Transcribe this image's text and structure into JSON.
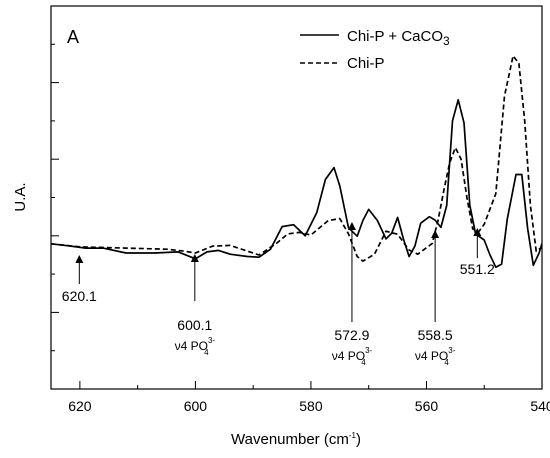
{
  "chart_data": {
    "type": "line",
    "panel_label": "A",
    "xlabel": "Wavenumber (cm",
    "xlabel_sup": "-1",
    "xlabel_end": ")",
    "ylabel": "U.A.",
    "xlim": [
      625,
      540
    ],
    "ylim": [
      0,
      1
    ],
    "x_reversed": true,
    "x_ticks": [
      620,
      600,
      580,
      560,
      540
    ],
    "x_tick_labels": [
      "620",
      "600",
      "580",
      "560",
      "540"
    ],
    "y_tick_labels_shown": false,
    "legend_position": "top-right",
    "series": [
      {
        "name": "Chi-P + CaCO",
        "name_sub": "3",
        "style": "solid",
        "color": "#000000",
        "points": [
          [
            625,
            0.379
          ],
          [
            622,
            0.374
          ],
          [
            619,
            0.368
          ],
          [
            616,
            0.368
          ],
          [
            612,
            0.355
          ],
          [
            607,
            0.355
          ],
          [
            603,
            0.358
          ],
          [
            600,
            0.34
          ],
          [
            598,
            0.358
          ],
          [
            596,
            0.362
          ],
          [
            594,
            0.352
          ],
          [
            591,
            0.346
          ],
          [
            589,
            0.344
          ],
          [
            587,
            0.365
          ],
          [
            585,
            0.424
          ],
          [
            583,
            0.429
          ],
          [
            581,
            0.4
          ],
          [
            579,
            0.46
          ],
          [
            577.5,
            0.547
          ],
          [
            576,
            0.578
          ],
          [
            575,
            0.53
          ],
          [
            573.5,
            0.421
          ],
          [
            572,
            0.399
          ],
          [
            571,
            0.44
          ],
          [
            570,
            0.469
          ],
          [
            568.5,
            0.44
          ],
          [
            567,
            0.392
          ],
          [
            566,
            0.407
          ],
          [
            565,
            0.448
          ],
          [
            564,
            0.392
          ],
          [
            563,
            0.346
          ],
          [
            562,
            0.373
          ],
          [
            561,
            0.433
          ],
          [
            559.5,
            0.45
          ],
          [
            558.5,
            0.441
          ],
          [
            557.5,
            0.422
          ],
          [
            556.5,
            0.479
          ],
          [
            555.5,
            0.7
          ],
          [
            554.5,
            0.755
          ],
          [
            553.5,
            0.695
          ],
          [
            552.5,
            0.48
          ],
          [
            551.5,
            0.405
          ],
          [
            550,
            0.389
          ],
          [
            549,
            0.35
          ],
          [
            548,
            0.318
          ],
          [
            547,
            0.326
          ],
          [
            546,
            0.444
          ],
          [
            544.5,
            0.56
          ],
          [
            543.5,
            0.56
          ],
          [
            542.5,
            0.42
          ],
          [
            541.5,
            0.323
          ],
          [
            540.5,
            0.355
          ],
          [
            540,
            0.38
          ]
        ]
      },
      {
        "name": "Chi-P",
        "style": "dashed",
        "color": "#000000",
        "points": [
          [
            625,
            0.379
          ],
          [
            620,
            0.371
          ],
          [
            612,
            0.368
          ],
          [
            605,
            0.365
          ],
          [
            602,
            0.36
          ],
          [
            600,
            0.355
          ],
          [
            597,
            0.373
          ],
          [
            594,
            0.375
          ],
          [
            591,
            0.36
          ],
          [
            589,
            0.35
          ],
          [
            586,
            0.38
          ],
          [
            584,
            0.405
          ],
          [
            582,
            0.409
          ],
          [
            580,
            0.402
          ],
          [
            577,
            0.44
          ],
          [
            575,
            0.445
          ],
          [
            573.5,
            0.405
          ],
          [
            572,
            0.346
          ],
          [
            571,
            0.334
          ],
          [
            569,
            0.352
          ],
          [
            567,
            0.412
          ],
          [
            565,
            0.404
          ],
          [
            563,
            0.363
          ],
          [
            561.5,
            0.352
          ],
          [
            559,
            0.38
          ],
          [
            558,
            0.44
          ],
          [
            557,
            0.518
          ],
          [
            556,
            0.59
          ],
          [
            555,
            0.63
          ],
          [
            554,
            0.6
          ],
          [
            553,
            0.5
          ],
          [
            552,
            0.418
          ],
          [
            551,
            0.41
          ],
          [
            550,
            0.43
          ],
          [
            548,
            0.51
          ],
          [
            546.5,
            0.765
          ],
          [
            545,
            0.87
          ],
          [
            544,
            0.85
          ],
          [
            543,
            0.7
          ],
          [
            542,
            0.48
          ],
          [
            541,
            0.36
          ],
          [
            540,
            0.37
          ]
        ]
      }
    ],
    "annotations": [
      {
        "value": "620.1",
        "x": 620.1
      },
      {
        "value": "600.1",
        "x": 600.1,
        "assignment": "ν4 PO",
        "sub": "4",
        "sup": "3-"
      },
      {
        "value": "572.9",
        "x": 572.9,
        "assignment": "ν4 PO",
        "sub": "4",
        "sup": "3-"
      },
      {
        "value": "558.5",
        "x": 558.5,
        "assignment": "ν4 PO",
        "sub": "4",
        "sup": "3-"
      },
      {
        "value": "551.2",
        "x": 551.2
      }
    ]
  }
}
